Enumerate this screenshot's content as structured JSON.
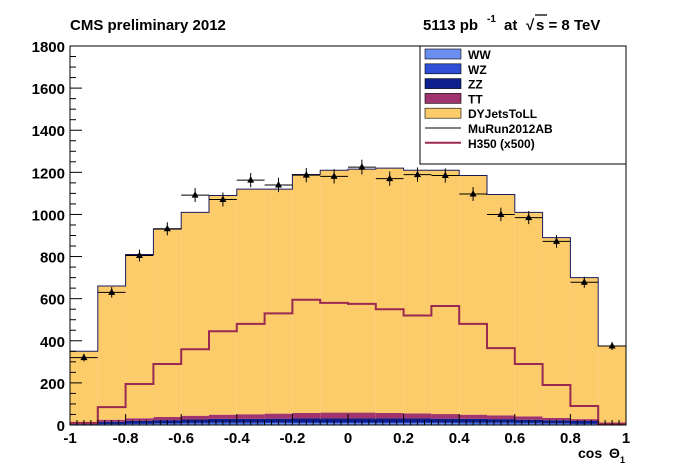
{
  "header": {
    "left": "CMS preliminary 2012",
    "lumi_value": "5113 pb",
    "lumi_exp": "-1",
    "lumi_at": "at",
    "sqrt_glyph": "√",
    "energy": "s = 8 TeV"
  },
  "chart_data": {
    "type": "histogram",
    "xlabel": "cos Θ",
    "xlabel_main": "cos",
    "xlabel_sym": "Θ",
    "xlabel_sub": "1",
    "xlim": [
      -1,
      1
    ],
    "ylim": [
      0,
      1800
    ],
    "bin_edges": [
      -1.0,
      -0.9,
      -0.8,
      -0.7,
      -0.6,
      -0.5,
      -0.4,
      -0.3,
      -0.2,
      -0.1,
      0.0,
      0.1,
      0.2,
      0.3,
      0.4,
      0.5,
      0.6,
      0.7,
      0.8,
      0.9,
      1.0
    ],
    "x_ticks": [
      "-1",
      "-0.8",
      "-0.6",
      "-0.4",
      "-0.2",
      "0",
      "0.2",
      "0.4",
      "0.6",
      "0.8",
      "1"
    ],
    "x_tick_values": [
      -1,
      -0.8,
      -0.6,
      -0.4,
      -0.2,
      0,
      0.2,
      0.4,
      0.6,
      0.8,
      1
    ],
    "y_ticks": [
      "0",
      "200",
      "400",
      "600",
      "800",
      "1000",
      "1200",
      "1400",
      "1600",
      "1800"
    ],
    "y_tick_values": [
      0,
      200,
      400,
      600,
      800,
      1000,
      1200,
      1400,
      1600,
      1800
    ],
    "stack_order": [
      "WW",
      "WZ",
      "ZZ",
      "TT",
      "DYJetsToLL"
    ],
    "series": [
      {
        "name": "WW",
        "color": "#6b8ff0",
        "kind": "stacked",
        "values": [
          1,
          3,
          4,
          5,
          6,
          7,
          7,
          8,
          8,
          8,
          8,
          8,
          8,
          8,
          7,
          7,
          6,
          5,
          4,
          2
        ]
      },
      {
        "name": "WZ",
        "color": "#2f4fd6",
        "kind": "stacked",
        "values": [
          1,
          2,
          3,
          3,
          4,
          4,
          4,
          4,
          4,
          4,
          4,
          4,
          4,
          4,
          4,
          4,
          4,
          3,
          3,
          2
        ]
      },
      {
        "name": "ZZ",
        "color": "#0d1f8c",
        "kind": "stacked",
        "values": [
          2,
          10,
          13,
          15,
          16,
          18,
          18,
          18,
          19,
          19,
          19,
          19,
          19,
          18,
          18,
          17,
          15,
          14,
          12,
          4
        ]
      },
      {
        "name": "TT",
        "color": "#a0346e",
        "kind": "stacked",
        "values": [
          3,
          10,
          12,
          15,
          18,
          20,
          22,
          24,
          26,
          28,
          28,
          26,
          24,
          22,
          20,
          18,
          16,
          12,
          9,
          4
        ]
      },
      {
        "name": "DYJetsToLL",
        "color": "#fccb6a",
        "kind": "stacked",
        "values": [
          343,
          635,
          778,
          892,
          966,
          1041,
          1069,
          1066,
          1133,
          1151,
          1156,
          1163,
          1155,
          1158,
          1136,
          1049,
          969,
          856,
          672,
          363
        ]
      },
      {
        "name": "MuRun2012AB",
        "color": "#000000",
        "kind": "data",
        "values": [
          320,
          630,
          805,
          932,
          1092,
          1071,
          1163,
          1140,
          1187,
          1181,
          1225,
          1170,
          1189,
          1185,
          1097,
          1000,
          985,
          872,
          678,
          375
        ],
        "errors": [
          18,
          25,
          28,
          31,
          33,
          33,
          34,
          34,
          34,
          34,
          35,
          34,
          34,
          34,
          33,
          32,
          31,
          30,
          26,
          19
        ]
      },
      {
        "name": "H350 (x500)",
        "color": "#9b2a52",
        "kind": "signal",
        "values": [
          10,
          85,
          195,
          290,
          360,
          445,
          480,
          530,
          595,
          580,
          575,
          550,
          520,
          565,
          480,
          365,
          290,
          190,
          90,
          5
        ]
      }
    ],
    "legend": {
      "position": "top-right",
      "entries": [
        "WW",
        "WZ",
        "ZZ",
        "TT",
        "DYJetsToLL",
        "MuRun2012AB",
        "H350 (x500)"
      ]
    },
    "grid": false
  }
}
